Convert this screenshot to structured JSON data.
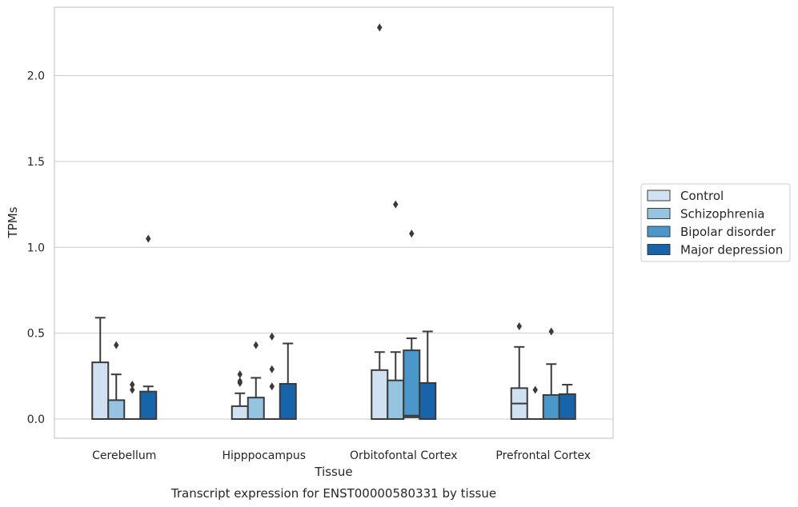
{
  "chart_data": {
    "type": "boxplot",
    "title": "Transcript expression for ENST00000580331 by tissue",
    "xlabel": "Tissue",
    "ylabel": "TPMs",
    "ylim": [
      -0.11,
      2.39
    ],
    "yticks": [
      0.0,
      0.5,
      1.0,
      1.5,
      2.0
    ],
    "ytick_labels": [
      "0.0",
      "0.5",
      "1.0",
      "1.5",
      "2.0"
    ],
    "grid": "horizontal",
    "legend_position": "right",
    "categories": [
      "Cerebellum",
      "Hipppocampus",
      "Orbitofontal Cortex",
      "Prefrontal Cortex"
    ],
    "series": [
      {
        "name": "Control",
        "color": "#d0e1f2",
        "boxes": [
          {
            "q1": 0.0,
            "median": 0.0,
            "q3": 0.33,
            "whisker_low": 0.0,
            "whisker_high": 0.59,
            "outliers": []
          },
          {
            "q1": 0.0,
            "median": 0.0,
            "q3": 0.075,
            "whisker_low": 0.0,
            "whisker_high": 0.15,
            "outliers": [
              0.21,
              0.22,
              0.26
            ]
          },
          {
            "q1": 0.0,
            "median": 0.0,
            "q3": 0.285,
            "whisker_low": 0.0,
            "whisker_high": 0.39,
            "outliers": [
              2.28
            ]
          },
          {
            "q1": 0.0,
            "median": 0.09,
            "q3": 0.18,
            "whisker_low": 0.0,
            "whisker_high": 0.42,
            "outliers": [
              0.54
            ]
          }
        ]
      },
      {
        "name": "Schizophrenia",
        "color": "#94c4df",
        "boxes": [
          {
            "q1": 0.0,
            "median": 0.0,
            "q3": 0.11,
            "whisker_low": 0.0,
            "whisker_high": 0.26,
            "outliers": [
              0.43
            ]
          },
          {
            "q1": 0.0,
            "median": 0.0,
            "q3": 0.125,
            "whisker_low": 0.0,
            "whisker_high": 0.24,
            "outliers": [
              0.43
            ]
          },
          {
            "q1": 0.0,
            "median": 0.0,
            "q3": 0.225,
            "whisker_low": 0.0,
            "whisker_high": 0.39,
            "outliers": [
              1.25
            ]
          },
          {
            "q1": 0.0,
            "median": 0.0,
            "q3": 0.0,
            "whisker_low": 0.0,
            "whisker_high": 0.0,
            "outliers": [
              0.17
            ]
          }
        ]
      },
      {
        "name": "Bipolar disorder",
        "color": "#4a98c9",
        "boxes": [
          {
            "q1": 0.0,
            "median": 0.0,
            "q3": 0.0,
            "whisker_low": 0.0,
            "whisker_high": 0.0,
            "outliers": [
              0.17,
              0.2
            ]
          },
          {
            "q1": 0.0,
            "median": 0.0,
            "q3": 0.0,
            "whisker_low": 0.0,
            "whisker_high": 0.0,
            "outliers": [
              0.19,
              0.29,
              0.48
            ]
          },
          {
            "q1": 0.01,
            "median": 0.02,
            "q3": 0.4,
            "whisker_low": 0.0,
            "whisker_high": 0.47,
            "outliers": [
              1.08
            ]
          },
          {
            "q1": 0.0,
            "median": 0.0,
            "q3": 0.14,
            "whisker_low": 0.0,
            "whisker_high": 0.32,
            "outliers": [
              0.51
            ]
          }
        ]
      },
      {
        "name": "Major depression",
        "color": "#1764ab",
        "boxes": [
          {
            "q1": 0.0,
            "median": 0.0,
            "q3": 0.16,
            "whisker_low": 0.0,
            "whisker_high": 0.19,
            "outliers": [
              1.05
            ]
          },
          {
            "q1": 0.0,
            "median": 0.0,
            "q3": 0.205,
            "whisker_low": 0.0,
            "whisker_high": 0.44,
            "outliers": []
          },
          {
            "q1": 0.0,
            "median": 0.0,
            "q3": 0.21,
            "whisker_low": 0.0,
            "whisker_high": 0.51,
            "outliers": []
          },
          {
            "q1": 0.0,
            "median": 0.0,
            "q3": 0.145,
            "whisker_low": 0.0,
            "whisker_high": 0.2,
            "outliers": []
          }
        ]
      }
    ]
  }
}
